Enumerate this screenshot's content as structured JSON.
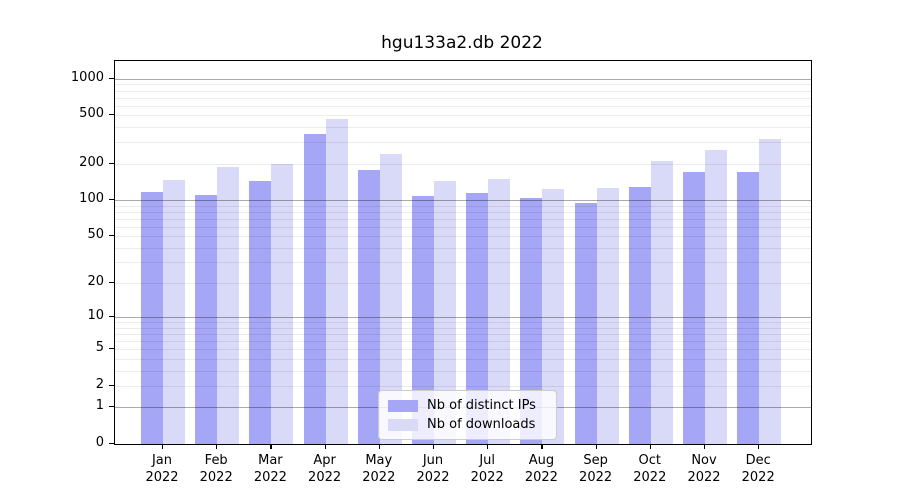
{
  "title": "hgu133a2.db 2022",
  "chart_data": {
    "type": "bar",
    "title": "hgu133a2.db 2022",
    "categories": [
      "Jan",
      "Feb",
      "Mar",
      "Apr",
      "May",
      "Jun",
      "Jul",
      "Aug",
      "Sep",
      "Oct",
      "Nov",
      "Dec"
    ],
    "year_label": "2022",
    "series": [
      {
        "name": "Nb of distinct IPs",
        "color": "#a6a6f6",
        "values": [
          116,
          110,
          144,
          350,
          178,
          108,
          115,
          104,
          94,
          129,
          171,
          171
        ]
      },
      {
        "name": "Nb of downloads",
        "color": "#d9d9f8",
        "values": [
          146,
          188,
          200,
          465,
          242,
          145,
          149,
          123,
          125,
          210,
          258,
          322
        ]
      }
    ],
    "y_axis": {
      "scale": "log1p",
      "ticks": [
        0,
        1,
        2,
        5,
        10,
        20,
        50,
        100,
        200,
        500,
        1000
      ],
      "major_gridlines": [
        1,
        10,
        100,
        1000
      ],
      "minor_gridlines": [
        2,
        3,
        4,
        5,
        6,
        7,
        8,
        9,
        20,
        30,
        40,
        50,
        60,
        70,
        80,
        90,
        200,
        300,
        400,
        500,
        600,
        700,
        800,
        900
      ],
      "ylim_top": 1400
    },
    "x_axis": {
      "tick_label_lines": 2
    },
    "legend": {
      "position": "bottom-center",
      "entries": [
        "Nb of distinct IPs",
        "Nb of downloads"
      ]
    },
    "grid": true
  }
}
